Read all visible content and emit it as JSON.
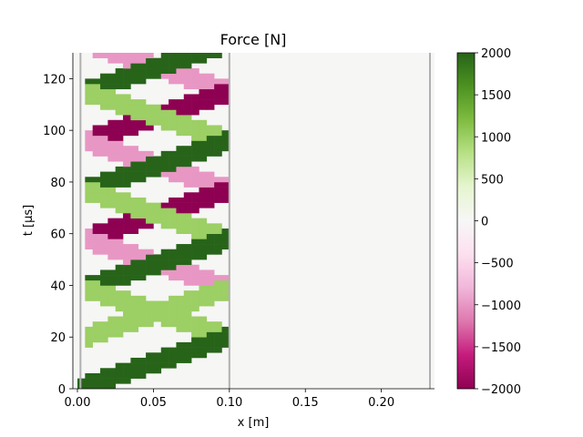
{
  "chart_data": {
    "type": "heatmap",
    "title": "Force [N]",
    "xlabel": "x [m]",
    "ylabel": "t [µs]",
    "xlim": [
      -0.003,
      0.235
    ],
    "ylim": [
      0,
      130
    ],
    "x_ticks": [
      "0.00",
      "0.05",
      "0.10",
      "0.15",
      "0.20"
    ],
    "x_tick_values": [
      0,
      0.05,
      0.1,
      0.15,
      0.2
    ],
    "y_ticks": [
      "0",
      "20",
      "40",
      "60",
      "80",
      "100",
      "120"
    ],
    "y_tick_values": [
      0,
      20,
      40,
      60,
      80,
      100,
      120
    ],
    "colorbar": {
      "colormap": "PiYG",
      "range": [
        -2000,
        2000
      ],
      "ticks": [
        "−2000",
        "−1500",
        "−1000",
        "−500",
        "0",
        "500",
        "1000",
        "1500",
        "2000"
      ],
      "tick_values": [
        -2000,
        -1500,
        -1000,
        -500,
        0,
        500,
        1000,
        1500,
        2000
      ]
    },
    "boundaries_x": [
      0.002,
      0.1,
      0.232
    ],
    "background_value": 0,
    "wave_speed_m_per_us": 0.005,
    "pulse_duration_us": 8.5,
    "segments": [
      {
        "x": [
          0.0,
          0.1
        ],
        "t": [
          0,
          20
        ],
        "force": 2000
      },
      {
        "x": [
          0.1,
          0.005
        ],
        "t": [
          20,
          39
        ],
        "force": 1000
      },
      {
        "x": [
          0.005,
          0.1
        ],
        "t": [
          39,
          58
        ],
        "force": 2000
      },
      {
        "x": [
          0.1,
          0.005
        ],
        "t": [
          58,
          77
        ],
        "force": 1000
      },
      {
        "x": [
          0.005,
          0.1
        ],
        "t": [
          77,
          96
        ],
        "force": 2000
      },
      {
        "x": [
          0.1,
          0.005
        ],
        "t": [
          96,
          115
        ],
        "force": 1000
      },
      {
        "x": [
          0.005,
          0.1
        ],
        "t": [
          115,
          134
        ],
        "force": 2000
      },
      {
        "x": [
          0.005,
          0.1
        ],
        "t": [
          20,
          39
        ],
        "force": 1000
      },
      {
        "x": [
          0.1,
          0.005
        ],
        "t": [
          39,
          58
        ],
        "force": -1000
      },
      {
        "x": [
          0.005,
          0.1
        ],
        "t": [
          58,
          77
        ],
        "force": -2000
      },
      {
        "x": [
          0.1,
          0.005
        ],
        "t": [
          77,
          96
        ],
        "force": -1000
      },
      {
        "x": [
          0.005,
          0.1
        ],
        "t": [
          96,
          115
        ],
        "force": -2000
      },
      {
        "x": [
          0.1,
          0.005
        ],
        "t": [
          115,
          134
        ],
        "force": -1000
      }
    ]
  }
}
